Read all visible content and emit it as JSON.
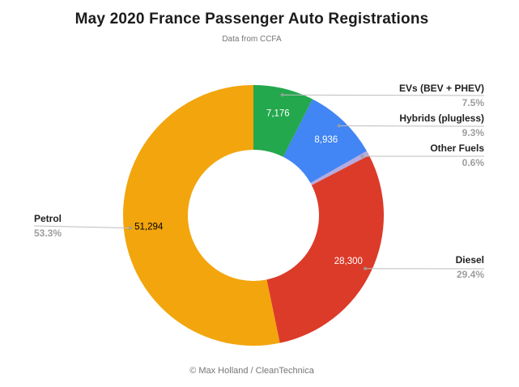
{
  "header": {
    "title": "May 2020 France Passenger Auto Registrations",
    "subtitle": "Data from CCFA"
  },
  "footer": {
    "credit": "© Max Holland / CleanTechnica"
  },
  "chart_data": {
    "type": "pie",
    "subtype": "donut",
    "title": "May 2020 France Passenger Auto Registrations",
    "subtitle": "Data from CCFA",
    "legend_position": "callout-labels",
    "start_angle_deg": 0,
    "direction": "clockwise",
    "segments": [
      {
        "label": "EVs (BEV + PHEV)",
        "value": 7176,
        "value_label": "7,176",
        "pct": 7.5,
        "pct_label": "7.5%",
        "color": "#23A84D",
        "value_text_color": "#ffffff"
      },
      {
        "label": "Hybrids (plugless)",
        "value": 8936,
        "value_label": "8,936",
        "pct": 9.3,
        "pct_label": "9.3%",
        "color": "#4285F4",
        "value_text_color": "#ffffff"
      },
      {
        "label": "Other Fuels",
        "pct": 0.6,
        "pct_label": "0.6%",
        "color": "#B5ABDF"
      },
      {
        "label": "Diesel",
        "value": 28300,
        "value_label": "28,300",
        "pct": 29.4,
        "pct_label": "29.4%",
        "color": "#DC3B2A",
        "value_text_color": "#ffffff"
      },
      {
        "label": "Petrol",
        "value": 51294,
        "value_label": "51,294",
        "pct": 53.3,
        "pct_label": "53.3%",
        "color": "#F2A50C",
        "value_text_color": "#000000"
      }
    ]
  }
}
